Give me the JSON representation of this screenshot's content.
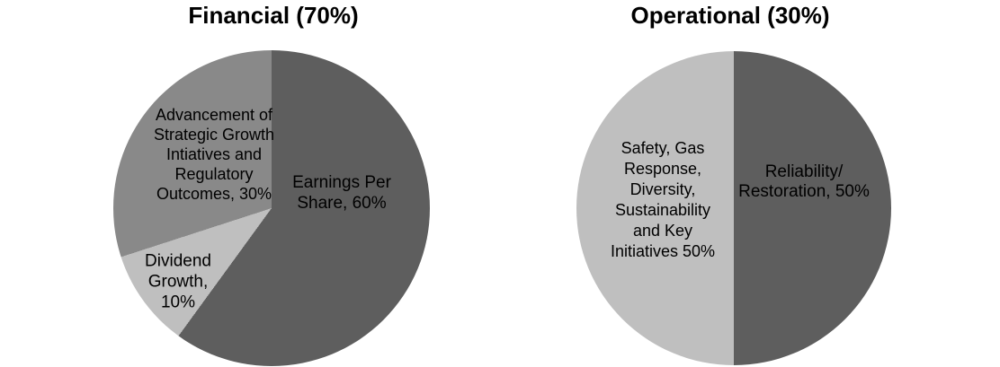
{
  "chart_data": [
    {
      "type": "pie",
      "title": "Financial (70%)",
      "start_angle_deg": 0,
      "direction": "clockwise",
      "slices": [
        {
          "name": "Earnings Per Share",
          "value": 60,
          "color": "#5e5e5e",
          "label": "Earnings Per\nShare, 60%"
        },
        {
          "name": "Dividend Growth",
          "value": 10,
          "color": "#bfbfbf",
          "label": "Dividend\nGrowth,\n10%"
        },
        {
          "name": "Advancement of Strategic Growth Intiatives and Regulatory Outcomes",
          "value": 30,
          "color": "#898989",
          "label": "Advancement of\nStrategic Growth\nIntiatives and\nRegulatory\nOutcomes, 30%"
        }
      ]
    },
    {
      "type": "pie",
      "title": "Operational (30%)",
      "start_angle_deg": 0,
      "direction": "clockwise",
      "slices": [
        {
          "name": "Reliability/Restoration",
          "value": 50,
          "color": "#5e5e5e",
          "label": "Reliability/\nRestoration, 50%"
        },
        {
          "name": "Safety, Gas Response, Diversity, Sustainability and Key Initiatives",
          "value": 50,
          "color": "#bfbfbf",
          "label": "Safety, Gas\nResponse,\nDiversity,\nSustainability\nand Key\nInitiatives 50%"
        }
      ]
    }
  ],
  "colors": {
    "dark_gray": "#5e5e5e",
    "medium_gray": "#898989",
    "light_gray": "#bfbfbf",
    "text": "#000000",
    "background": "#ffffff"
  }
}
